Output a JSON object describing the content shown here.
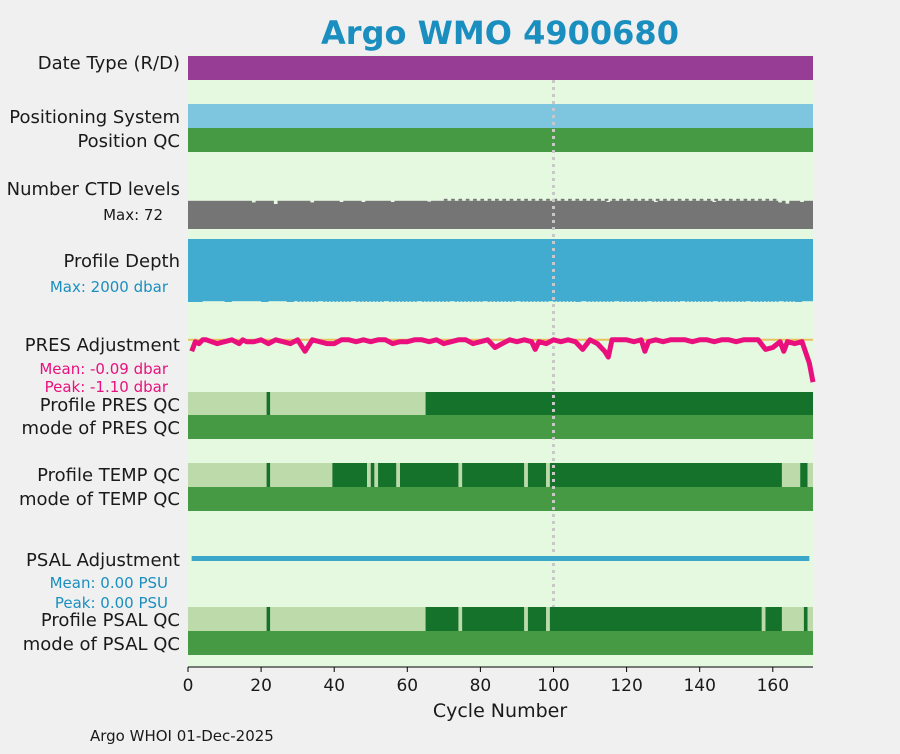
{
  "colors": {
    "background": "#f0f0f0",
    "plot_bg": "#e5f8e0",
    "title": "#1a8fbf",
    "date_type": "#983d96",
    "positioning": "#7ec5df",
    "qc_mode": "#479a44",
    "qc_light": "#bcdaaa",
    "qc_dark": "#14722a",
    "ctd": "#757575",
    "depth": "#42abd0",
    "pres": "#e9107d",
    "pres_ref": "#e8c25a",
    "psal": "#3aa7cb",
    "grid": "#c8c8c8",
    "text": "#1a1a1a"
  },
  "chart_data": {
    "type": "timeline",
    "title": "Argo WMO 4900680",
    "xlabel": "Cycle Number",
    "xlim": [
      0,
      171
    ],
    "xticks": [
      0,
      20,
      40,
      60,
      80,
      100,
      120,
      140,
      160
    ],
    "footer": "Argo WHOI 01-Dec-2025",
    "rows": {
      "date_type": {
        "label": "Date Type (R/D)",
        "segments": [
          {
            "start": 0,
            "end": 171,
            "value": "R"
          }
        ]
      },
      "positioning": {
        "label": "Positioning System",
        "segments": [
          {
            "start": 0,
            "end": 171,
            "value": "ARGOS"
          }
        ]
      },
      "position_qc": {
        "label": "Position QC",
        "segments": [
          {
            "start": 0,
            "end": 171,
            "value": "1"
          }
        ]
      },
      "ctd_levels": {
        "label": "Number CTD levels",
        "max_label": "Max: 72",
        "max": 72,
        "baseline": 70,
        "dips": [
          [
            18,
            66
          ],
          [
            24,
            62
          ],
          [
            34,
            66
          ],
          [
            42,
            67
          ],
          [
            48,
            67
          ],
          [
            56,
            67
          ],
          [
            66,
            68
          ],
          [
            115,
            67
          ],
          [
            128,
            67
          ],
          [
            144,
            67
          ],
          [
            162,
            66
          ],
          [
            164,
            63
          ],
          [
            168,
            67
          ]
        ]
      },
      "profile_depth": {
        "label": "Profile Depth",
        "max_label": "Max: 2000 dbar",
        "max": 2000,
        "full_depth": 2000,
        "short_depth": 1975,
        "full_ranges": [
          [
            0,
            4
          ],
          [
            10,
            12
          ],
          [
            20,
            22
          ],
          [
            27,
            29
          ],
          [
            106,
            107
          ],
          [
            166,
            168
          ]
        ]
      },
      "pres_adjustment": {
        "label": "PRES Adjustment",
        "mean_label": "Mean: -0.09 dbar",
        "peak_label": "Peak: -1.10 dbar",
        "mean": -0.09,
        "peak": -1.1,
        "ylim": [
          -1.2,
          0.15
        ],
        "cycles": [
          1,
          2,
          3,
          4,
          5,
          8,
          10,
          12,
          14,
          15,
          16,
          18,
          20,
          22,
          24,
          26,
          28,
          30,
          32,
          34,
          36,
          38,
          40,
          42,
          44,
          46,
          48,
          50,
          52,
          54,
          56,
          58,
          60,
          62,
          64,
          66,
          68,
          70,
          72,
          74,
          76,
          78,
          80,
          82,
          84,
          86,
          88,
          90,
          92,
          94,
          95,
          96,
          98,
          100,
          102,
          104,
          106,
          108,
          110,
          112,
          114,
          115,
          116,
          118,
          120,
          122,
          124,
          125,
          126,
          128,
          130,
          132,
          134,
          136,
          138,
          140,
          142,
          144,
          146,
          148,
          150,
          152,
          154,
          156,
          158,
          160,
          162,
          163,
          164,
          166,
          168,
          170,
          171
        ],
        "values": [
          -0.3,
          -0.05,
          -0.1,
          0.0,
          0.0,
          -0.1,
          -0.05,
          0.0,
          -0.1,
          0.0,
          -0.05,
          -0.05,
          0.0,
          -0.1,
          0.0,
          -0.05,
          -0.1,
          0.0,
          -0.3,
          0.0,
          -0.05,
          -0.1,
          -0.1,
          0.0,
          0.0,
          -0.05,
          0.0,
          -0.05,
          0.0,
          0.0,
          -0.1,
          -0.05,
          -0.05,
          0.0,
          0.0,
          -0.05,
          0.0,
          -0.1,
          -0.05,
          0.0,
          0.0,
          -0.1,
          -0.05,
          0.0,
          -0.2,
          -0.1,
          0.0,
          -0.05,
          0.0,
          -0.05,
          -0.25,
          -0.05,
          -0.1,
          0.0,
          -0.05,
          0.0,
          -0.05,
          -0.25,
          0.0,
          -0.1,
          -0.3,
          -0.45,
          0.0,
          0.0,
          0.0,
          -0.05,
          0.0,
          -0.3,
          -0.05,
          0.0,
          -0.05,
          0.0,
          0.0,
          0.0,
          -0.05,
          0.0,
          0.0,
          -0.05,
          0.0,
          0.0,
          -0.05,
          0.0,
          0.0,
          0.0,
          -0.25,
          -0.2,
          -0.05,
          -0.3,
          -0.05,
          -0.1,
          -0.05,
          -0.6,
          -1.1
        ]
      },
      "profile_pres_qc": {
        "label": "Profile PRES QC",
        "segments": [
          {
            "start": 0,
            "end": 21.5,
            "value": "B"
          },
          {
            "start": 21.5,
            "end": 22.5,
            "value": "A"
          },
          {
            "start": 22.5,
            "end": 65,
            "value": "B"
          },
          {
            "start": 65,
            "end": 171,
            "value": "A"
          }
        ]
      },
      "mode_pres_qc": {
        "label": "mode of PRES QC",
        "segments": [
          {
            "start": 0,
            "end": 171,
            "value": "1"
          }
        ]
      },
      "profile_temp_qc": {
        "label": "Profile TEMP QC",
        "segments": [
          {
            "start": 0,
            "end": 21.5,
            "value": "B"
          },
          {
            "start": 21.5,
            "end": 22.5,
            "value": "A"
          },
          {
            "start": 22.5,
            "end": 39.5,
            "value": "B"
          },
          {
            "start": 39.5,
            "end": 49,
            "value": "A"
          },
          {
            "start": 49,
            "end": 50,
            "value": "B"
          },
          {
            "start": 50,
            "end": 51,
            "value": "A"
          },
          {
            "start": 51,
            "end": 52,
            "value": "B"
          },
          {
            "start": 52,
            "end": 57,
            "value": "A"
          },
          {
            "start": 57,
            "end": 58,
            "value": "B"
          },
          {
            "start": 58,
            "end": 74,
            "value": "A"
          },
          {
            "start": 74,
            "end": 75,
            "value": "B"
          },
          {
            "start": 75,
            "end": 92,
            "value": "A"
          },
          {
            "start": 92,
            "end": 93,
            "value": "B"
          },
          {
            "start": 93,
            "end": 98,
            "value": "A"
          },
          {
            "start": 98,
            "end": 99,
            "value": "B"
          },
          {
            "start": 99,
            "end": 162.5,
            "value": "A"
          },
          {
            "start": 162.5,
            "end": 167.5,
            "value": "B"
          },
          {
            "start": 167.5,
            "end": 169.5,
            "value": "A"
          },
          {
            "start": 169.5,
            "end": 171,
            "value": "B"
          }
        ]
      },
      "mode_temp_qc": {
        "label": "mode of TEMP QC",
        "segments": [
          {
            "start": 0,
            "end": 171,
            "value": "1"
          }
        ]
      },
      "psal_adjustment": {
        "label": "PSAL Adjustment",
        "mean_label": "Mean: 0.00 PSU",
        "peak_label": "Peak: 0.00 PSU",
        "mean": 0.0,
        "peak": 0.0,
        "start": 1,
        "end": 170
      },
      "profile_psal_qc": {
        "label": "Profile PSAL QC",
        "segments": [
          {
            "start": 0,
            "end": 21.5,
            "value": "B"
          },
          {
            "start": 21.5,
            "end": 22.5,
            "value": "A"
          },
          {
            "start": 22.5,
            "end": 65,
            "value": "B"
          },
          {
            "start": 65,
            "end": 74,
            "value": "A"
          },
          {
            "start": 74,
            "end": 75,
            "value": "B"
          },
          {
            "start": 75,
            "end": 92,
            "value": "A"
          },
          {
            "start": 92,
            "end": 93,
            "value": "B"
          },
          {
            "start": 93,
            "end": 98,
            "value": "A"
          },
          {
            "start": 98,
            "end": 99,
            "value": "B"
          },
          {
            "start": 99,
            "end": 157,
            "value": "A"
          },
          {
            "start": 157,
            "end": 158,
            "value": "B"
          },
          {
            "start": 158,
            "end": 162.5,
            "value": "A"
          },
          {
            "start": 162.5,
            "end": 168.5,
            "value": "B"
          },
          {
            "start": 168.5,
            "end": 169.5,
            "value": "A"
          },
          {
            "start": 169.5,
            "end": 171,
            "value": "B"
          }
        ]
      },
      "mode_psal_qc": {
        "label": "mode of PSAL QC",
        "segments": [
          {
            "start": 0,
            "end": 171,
            "value": "1"
          }
        ]
      }
    },
    "gridlines": [
      100
    ]
  }
}
